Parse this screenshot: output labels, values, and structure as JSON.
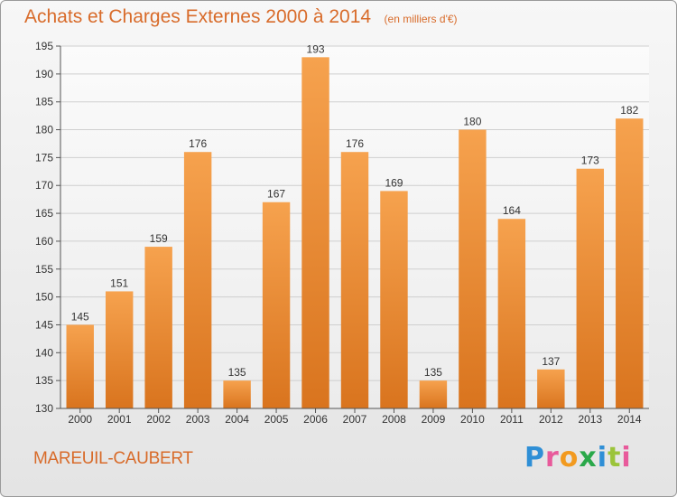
{
  "title": "Achats et Charges Externes 2000 à 2014",
  "subtitle": "(en milliers d'€)",
  "location": "MAREUIL-CAUBERT",
  "logo": {
    "letters": [
      "P",
      "r",
      "o",
      "x",
      "i",
      "t",
      "i"
    ],
    "colors": [
      "#2f8fd6",
      "#e85a9b",
      "#f29a1f",
      "#2aa84a",
      "#2f8fd6",
      "#9bc43a",
      "#e85a9b"
    ]
  },
  "colors": {
    "bar_top": "#f6a24e",
    "bar_bottom": "#d9741e",
    "accent": "#d86b2a"
  },
  "chart_data": {
    "type": "bar",
    "categories": [
      "2000",
      "2001",
      "2002",
      "2003",
      "2004",
      "2005",
      "2006",
      "2007",
      "2008",
      "2009",
      "2010",
      "2011",
      "2012",
      "2013",
      "2014"
    ],
    "values": [
      145,
      151,
      159,
      176,
      135,
      167,
      193,
      176,
      169,
      135,
      180,
      164,
      137,
      173,
      182
    ],
    "value_labels": [
      "145",
      "151",
      "159",
      "176",
      "135",
      "167",
      "193",
      "176",
      "169",
      "135",
      "180",
      "164",
      "137",
      "173",
      "182"
    ],
    "ylim": [
      130,
      195
    ],
    "yticks": [
      130,
      135,
      140,
      145,
      150,
      155,
      160,
      165,
      170,
      175,
      180,
      185,
      190,
      195
    ],
    "ytick_labels": [
      "130",
      "135",
      "140",
      "145",
      "150",
      "155",
      "160",
      "165",
      "170",
      "175",
      "180",
      "185",
      "190",
      "195"
    ],
    "grid": true,
    "xlabel": "",
    "ylabel": ""
  }
}
